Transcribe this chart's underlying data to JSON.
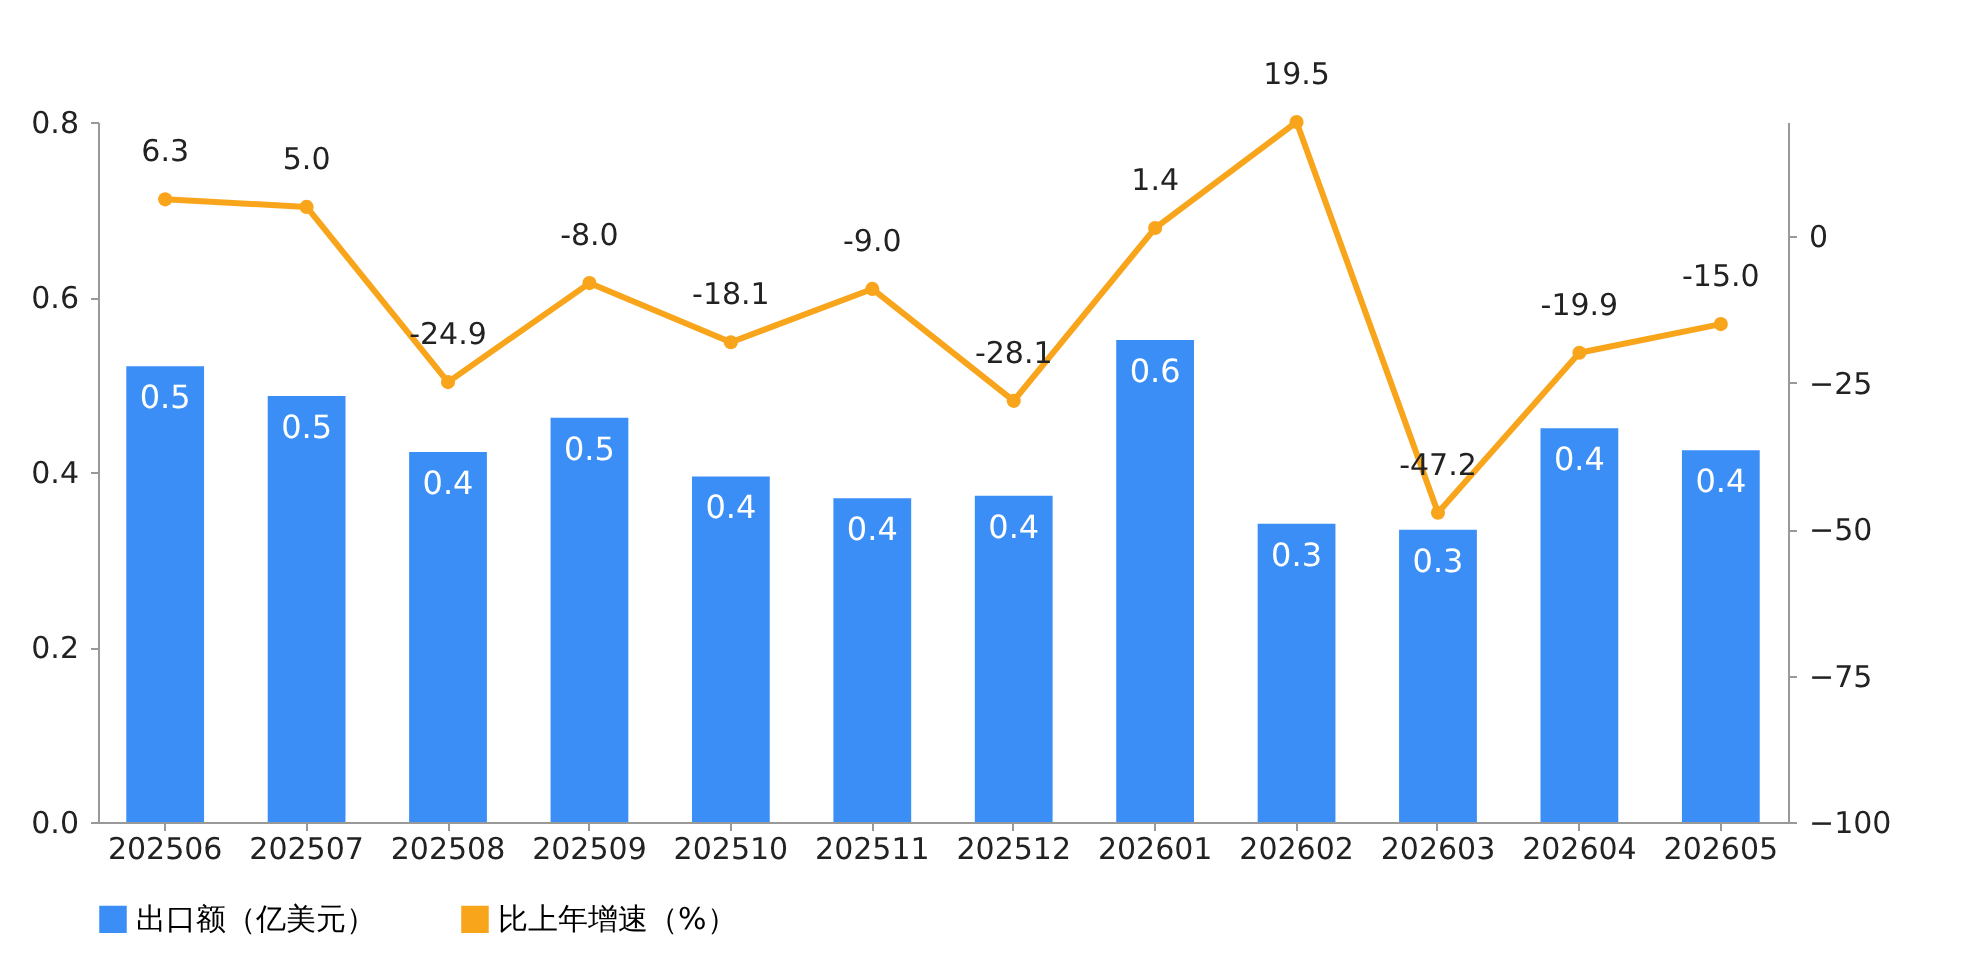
{
  "chart_data": {
    "type": "bar",
    "categories": [
      "202506",
      "202507",
      "202508",
      "202509",
      "202510",
      "202511",
      "202512",
      "202601",
      "202602",
      "202603",
      "202604",
      "202605"
    ],
    "series": [
      {
        "name": "出口额（亿美元）",
        "color": "#3a8ef6",
        "values": [
          0.521,
          0.487,
          0.423,
          0.462,
          0.395,
          0.37,
          0.373,
          0.551,
          0.341,
          0.334,
          0.45,
          0.425
        ],
        "value_labels": [
          "0.5",
          "0.5",
          "0.4",
          "0.5",
          "0.4",
          "0.4",
          "0.4",
          "0.6",
          "0.3",
          "0.3",
          "0.4",
          "0.4"
        ]
      },
      {
        "name": "比上年增速（%）",
        "type": "line",
        "axis": "y2",
        "color": "#f8a51c",
        "marker": "circle",
        "values": [
          6.3,
          5.0,
          -24.9,
          -8.0,
          -18.1,
          -9.0,
          -28.1,
          1.4,
          19.5,
          -47.2,
          -19.9,
          -15.0
        ],
        "value_labels": [
          "6.3",
          "5.0",
          "-24.9",
          "-8.0",
          "-18.1",
          "-9.0",
          "-28.1",
          "1.4",
          "19.5",
          "-47.2",
          "-19.9",
          "-15.0"
        ]
      }
    ],
    "ylim": [
      0,
      0.8
    ],
    "yticks": [
      {
        "value": 0,
        "label": "0.0"
      },
      {
        "value": 0.2,
        "label": "0.2"
      },
      {
        "value": 0.4,
        "label": "0.4"
      },
      {
        "value": 0.6,
        "label": "0.6"
      },
      {
        "value": 0.8,
        "label": "0.8"
      }
    ],
    "y2lim": [
      -100,
      19.5
    ],
    "y2ticks": [
      -100,
      -75,
      -50,
      -25,
      0
    ],
    "grid": false,
    "legend": "bottom"
  }
}
